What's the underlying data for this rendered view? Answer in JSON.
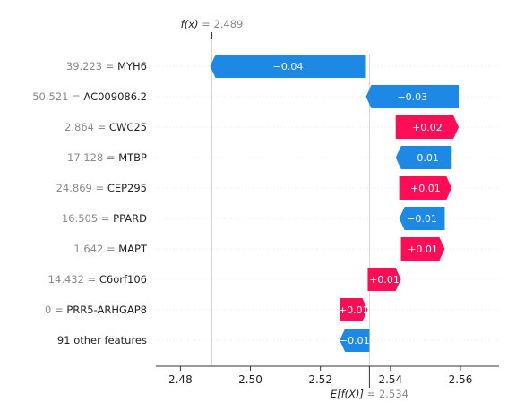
{
  "chart_data": {
    "type": "waterfall",
    "fx": {
      "label": "f(x)",
      "value": "2.489",
      "x": 2.489
    },
    "base": {
      "label": "E[f(X)]",
      "value": "2.534",
      "x": 2.534
    },
    "xlim": [
      2.473,
      2.571
    ],
    "xticks": [
      2.48,
      2.5,
      2.52,
      2.54,
      2.56
    ],
    "xtick_labels": [
      "2.48",
      "2.50",
      "2.52",
      "2.54",
      "2.56"
    ],
    "rows": [
      {
        "value_text": "39.223",
        "feature": "MYH6",
        "start": 2.533,
        "end": 2.4885,
        "label": "−0.04",
        "sign": "neg"
      },
      {
        "value_text": "50.521",
        "feature": "AC009086.2",
        "start": 2.5595,
        "end": 2.533,
        "label": "−0.03",
        "sign": "neg"
      },
      {
        "value_text": "2.864",
        "feature": "CWC25",
        "start": 2.5415,
        "end": 2.5595,
        "label": "+0.02",
        "sign": "pos"
      },
      {
        "value_text": "17.128",
        "feature": "MTBP",
        "start": 2.5575,
        "end": 2.5415,
        "label": "−0.01",
        "sign": "neg"
      },
      {
        "value_text": "24.869",
        "feature": "CEP295",
        "start": 2.5425,
        "end": 2.5575,
        "label": "+0.01",
        "sign": "pos"
      },
      {
        "value_text": "16.505",
        "feature": "PPARD",
        "start": 2.5555,
        "end": 2.5425,
        "label": "−0.01",
        "sign": "neg"
      },
      {
        "value_text": "1.642",
        "feature": "MAPT",
        "start": 2.543,
        "end": 2.5555,
        "label": "+0.01",
        "sign": "pos"
      },
      {
        "value_text": "14.432",
        "feature": "C6orf106",
        "start": 2.5335,
        "end": 2.543,
        "label": "+0.01",
        "sign": "pos"
      },
      {
        "value_text": "0",
        "feature": "PRR5-ARHGAP8",
        "start": 2.5255,
        "end": 2.5335,
        "label": "+0.01",
        "sign": "pos"
      },
      {
        "value_text": "",
        "feature": "91 other features",
        "start": 2.534,
        "end": 2.5255,
        "label": "−0.01",
        "sign": "neg"
      }
    ],
    "colors": {
      "pos": "#ff0d57",
      "neg": "#1e88e5",
      "axis": "#333333",
      "gray": "#8a8a8a"
    }
  }
}
